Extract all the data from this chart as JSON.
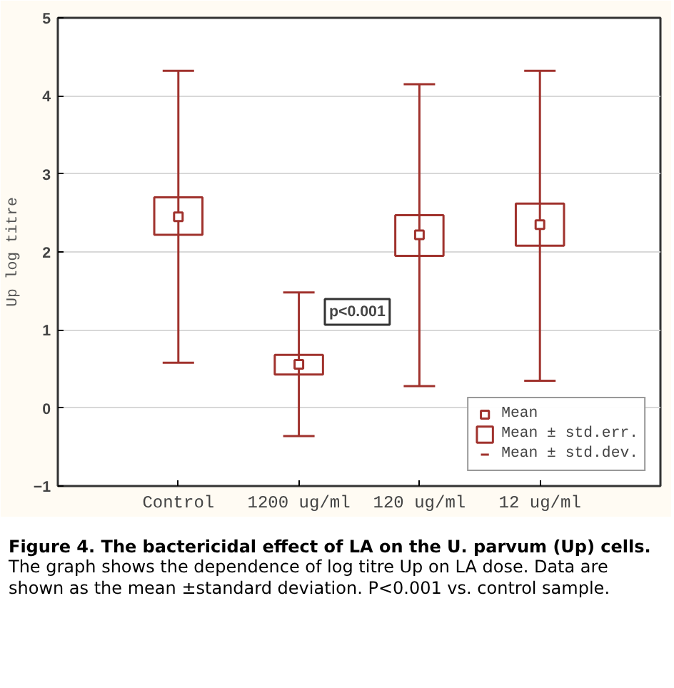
{
  "chart_data": {
    "type": "bar",
    "title": "Figure 4. The bactericidal effect of LA on the U. parvum (Up) cells.",
    "subtitle": "The graph shows the dependence of log titre Up on LA dose. Data are shown as the mean ±standard deviation. P<0.001 vs. control sample.",
    "ylabel": "Up log titre",
    "categories": [
      "Control",
      "1200 ug/ml",
      "120 ug/ml",
      "12 ug/ml"
    ],
    "series": [
      {
        "name": "Mean",
        "type": "scatter",
        "marker": "square",
        "color": "#a0322d",
        "values": [
          2.45,
          0.56,
          2.22,
          2.35
        ],
        "errors": [
          [
            0.58,
            4.32
          ],
          [
            -0.36,
            1.48
          ],
          [
            0.28,
            4.15
          ],
          [
            0.35,
            4.32
          ]
        ]
      },
      {
        "name": "Mean ± std.err.",
        "color": "#a0322d",
        "base": [
          2.22,
          0.43,
          1.95,
          2.08
        ],
        "values": [
          0.48,
          0.25,
          0.52,
          0.54
        ]
      },
      {
        "name": "Mean ± std.dev.",
        "type": "scatter",
        "color": "#a0322d",
        "values": [
          null,
          null,
          null,
          null
        ]
      }
    ],
    "annotations": [
      "p<0.001"
    ],
    "ylim": [
      -1,
      5
    ],
    "yticks": [
      -1,
      0,
      1,
      2,
      3,
      4,
      5
    ],
    "grid": "y",
    "legend": "bottom right"
  }
}
